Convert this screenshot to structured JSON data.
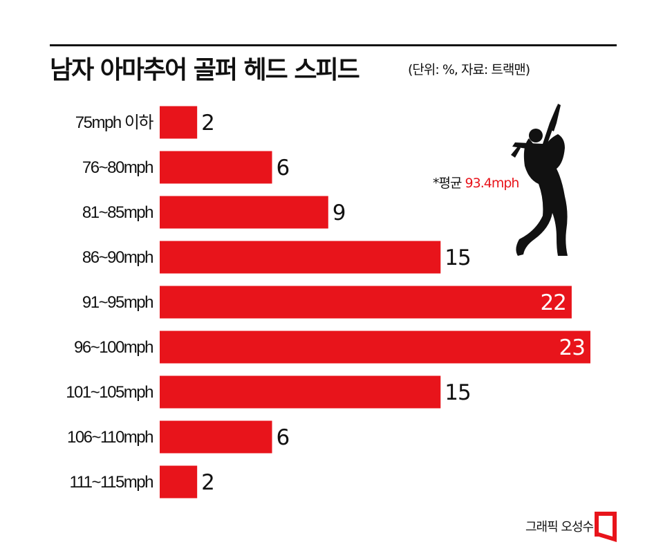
{
  "title": "남자 아마추어 골퍼 헤드 스피드",
  "subtitle": "(단위: %, 자료: 트랙맨)",
  "note": {
    "prefix": "*평균",
    "value": "93.4mph"
  },
  "credit": "그래픽 오성수",
  "colors": {
    "bar": "#e8141b",
    "text": "#111111",
    "inside_label": "#ffffff"
  },
  "icons": [
    "golfer-silhouette-icon",
    "logo-mark-icon"
  ],
  "chart_data": {
    "type": "bar",
    "orientation": "horizontal",
    "categories": [
      "75mph 이하",
      "76~80mph",
      "81~85mph",
      "86~90mph",
      "91~95mph",
      "96~100mph",
      "101~105mph",
      "106~110mph",
      "111~115mph"
    ],
    "values": [
      2,
      6,
      9,
      15,
      22,
      23,
      15,
      6,
      2
    ],
    "title": "남자 아마추어 골퍼 헤드 스피드",
    "xlabel": "",
    "ylabel": "",
    "xlim": [
      0,
      23
    ],
    "grid": false,
    "value_labels": [
      "2",
      "6",
      "9",
      "15",
      "22",
      "23",
      "15",
      "6",
      "2"
    ]
  }
}
